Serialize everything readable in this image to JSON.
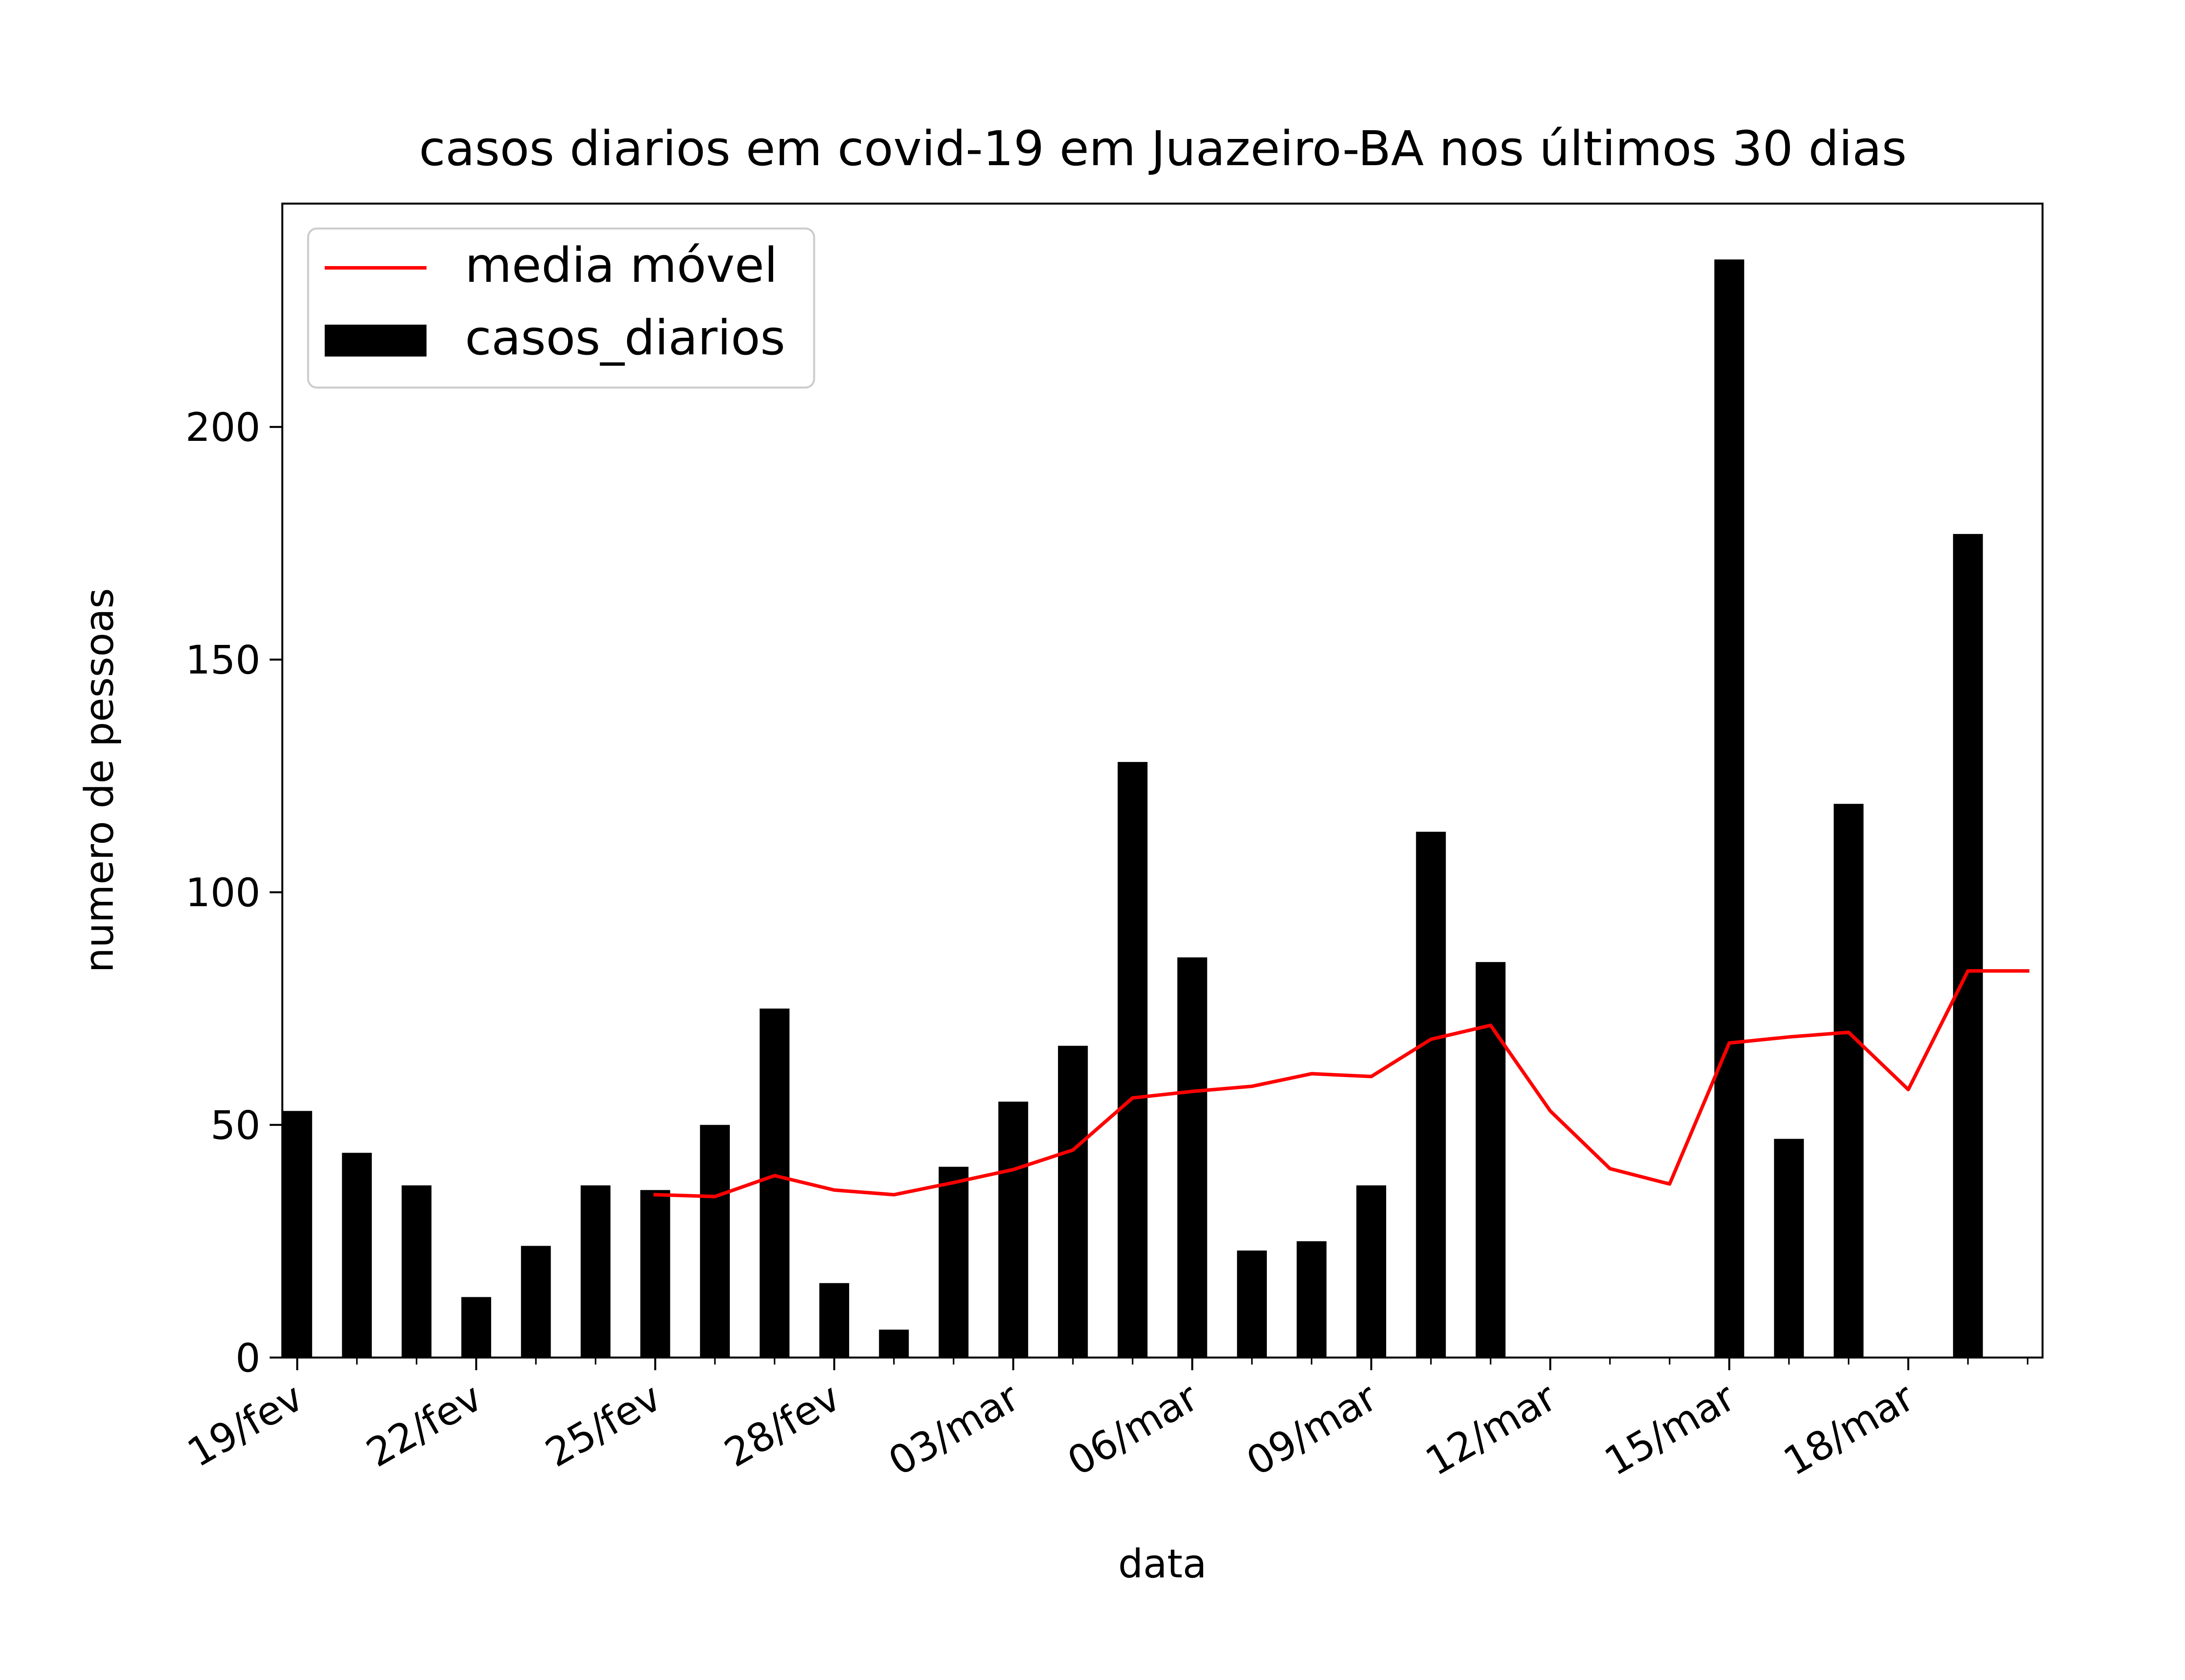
{
  "chart_data": {
    "type": "bar",
    "title": "casos diarios em covid-19 em Juazeiro-BA nos últimos 30 dias",
    "xlabel": "data",
    "ylabel": "numero de pessoas",
    "x": [
      "2021-02-19",
      "2021-02-20",
      "2021-02-21",
      "2021-02-22",
      "2021-02-23",
      "2021-02-24",
      "2021-02-25",
      "2021-02-26",
      "2021-02-27",
      "2021-02-28",
      "2021-03-01",
      "2021-03-02",
      "2021-03-03",
      "2021-03-04",
      "2021-03-05",
      "2021-03-06",
      "2021-03-07",
      "2021-03-08",
      "2021-03-09",
      "2021-03-10",
      "2021-03-11",
      "2021-03-12",
      "2021-03-13",
      "2021-03-14",
      "2021-03-15",
      "2021-03-16",
      "2021-03-17",
      "2021-03-18",
      "2021-03-19",
      "2021-03-20"
    ],
    "series": [
      {
        "name": "casos_diarios",
        "type": "bar",
        "color": "#000000",
        "values": [
          53,
          44,
          37,
          13,
          24,
          37,
          36,
          50,
          75,
          16,
          6,
          41,
          55,
          67,
          128,
          86,
          23,
          25,
          37,
          113,
          85,
          0,
          0,
          0,
          236,
          47,
          119,
          0,
          177,
          0
        ]
      },
      {
        "name": "media móvel",
        "type": "line",
        "color": "#ff0000",
        "values": [
          null,
          null,
          null,
          null,
          null,
          null,
          35,
          34.6,
          39.1,
          36,
          35,
          37.6,
          40.4,
          44.6,
          55.8,
          57.2,
          58.3,
          61,
          60.4,
          68.4,
          71.4,
          53,
          40.6,
          37.3,
          67.6,
          68.9,
          69.9,
          57.6,
          83.1,
          83.1
        ]
      }
    ],
    "tick_labels": [
      "19/fev",
      "22/fev",
      "25/fev",
      "28/fev",
      "03/mar",
      "06/mar",
      "09/mar",
      "12/mar",
      "15/mar",
      "18/mar"
    ],
    "tick_dates": [
      "2021-02-19",
      "2021-02-22",
      "2021-02-25",
      "2021-02-28",
      "2021-03-03",
      "2021-03-06",
      "2021-03-09",
      "2021-03-12",
      "2021-03-15",
      "2021-03-18"
    ],
    "yticks": [
      0,
      50,
      100,
      150,
      200
    ],
    "ylim": [
      0,
      248
    ],
    "xlim": [
      "2021-02-18T18:00",
      "2021-03-20T06:00"
    ],
    "grid": false,
    "legend_position": "top-left"
  }
}
